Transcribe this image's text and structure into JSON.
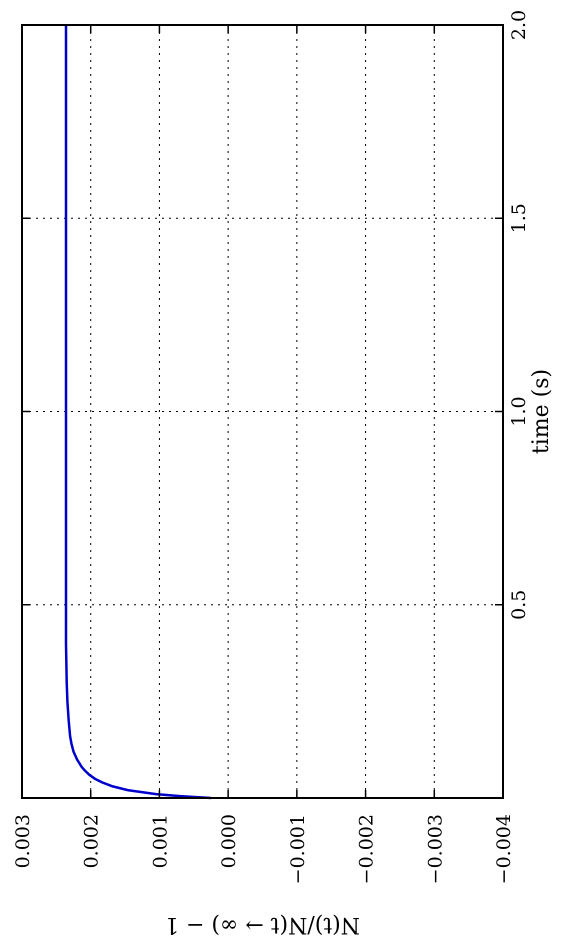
{
  "chart_data": {
    "type": "line",
    "orientation": "rotated-90-clockwise",
    "title": "",
    "xlabel": "time (s)",
    "ylabel": "N(t)/N(t → ∞) − 1",
    "xlim": [
      0.0,
      2.0
    ],
    "ylim": [
      -0.004,
      0.003
    ],
    "xticks": [
      0.5,
      1.0,
      1.5,
      2.0
    ],
    "xtick_labels": [
      "0.5",
      "1.0",
      "1.5",
      "2.0"
    ],
    "yticks": [
      0.003,
      0.002,
      0.001,
      0.0,
      -0.001,
      -0.002,
      -0.003,
      -0.004
    ],
    "ytick_labels": [
      "0.003",
      "0.002",
      "0.001",
      "0.000",
      "−0.001",
      "−0.002",
      "−0.003",
      "−0.004"
    ],
    "grid": true,
    "series": [
      {
        "color": "#0000cc",
        "x": [
          0.0,
          0.005,
          0.01,
          0.02,
          0.03,
          0.04,
          0.05,
          0.06,
          0.07,
          0.08,
          0.1,
          0.12,
          0.14,
          0.16,
          0.2,
          0.25,
          0.3,
          0.4,
          0.5,
          1.0,
          1.5,
          2.0
        ],
        "y": [
          0.00025,
          0.0007,
          0.00105,
          0.00145,
          0.00168,
          0.00183,
          0.00194,
          0.00202,
          0.00208,
          0.00213,
          0.0022,
          0.00225,
          0.00228,
          0.0023,
          0.00232,
          0.00234,
          0.00235,
          0.00236,
          0.00236,
          0.00236,
          0.00236,
          0.00236
        ]
      }
    ]
  }
}
